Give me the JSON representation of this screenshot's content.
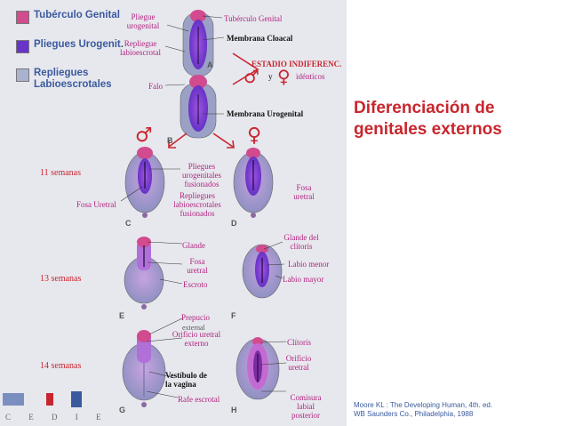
{
  "legend": [
    {
      "label": "Tubérculo Genital",
      "color": "#d14b8e"
    },
    {
      "label": "Pliegues Urogenit.",
      "color": "#6a33c9"
    },
    {
      "label": "Repliegues Labioescrotales",
      "color": "#a9b3cf"
    }
  ],
  "title": "Diferenciación de genitales externos",
  "citation": [
    "Moore KL : The Developing Human, 4th. ed.",
    "WB Saunders Co., Philadelphia, 1988"
  ],
  "footer_letters": "C E D I E",
  "stage_letters": [
    "A",
    "B",
    "C",
    "D",
    "E",
    "F",
    "G",
    "H"
  ],
  "weeks": [
    "11 semanas",
    "13 semanas",
    "14 semanas"
  ],
  "labels": {
    "pliegue_urogenital": "Pliegue urogenital",
    "repliegue_labioescrotal": "Repliegue labioescrotal",
    "falo": "Falo",
    "tuberculo_genital": "Tubérculo Genital",
    "membrana_cloacal": "Membrana Cloacal",
    "estadio": "ESTADIO INDIFERENC.",
    "y": "y",
    "identicos": "idénticos",
    "membrana_urogenital": "Membrana Urogenital",
    "pliegues_fusionados": "Pliegues urogenitales fusionados",
    "repliegues_fusionados": "Repliegues labioescrotales fusionados",
    "fosa_uretral_male": "Fosa Uretral",
    "fosa_uretral_female": "Fosa uretral",
    "glande": "Glande",
    "fosa_uretral_13": "Fosa uretral",
    "escroto": "Escroto",
    "glande_clitoris": "Glande del clítoris",
    "labio_menor": "Labio menor",
    "labio_mayor": "Labio mayor",
    "prepucio": "Prepucio",
    "external": "external",
    "orificio_externo": "Orificio uretral externo",
    "vestibulo": "Vestíbulo de la vagina",
    "rafe": "Rafe escrotal",
    "clitoris": "Clítoris",
    "orificio_uretral": "Orificio uretral",
    "comisura": "Comisura labial posterior"
  },
  "symbols": {
    "male": "♂",
    "female": "♀"
  }
}
